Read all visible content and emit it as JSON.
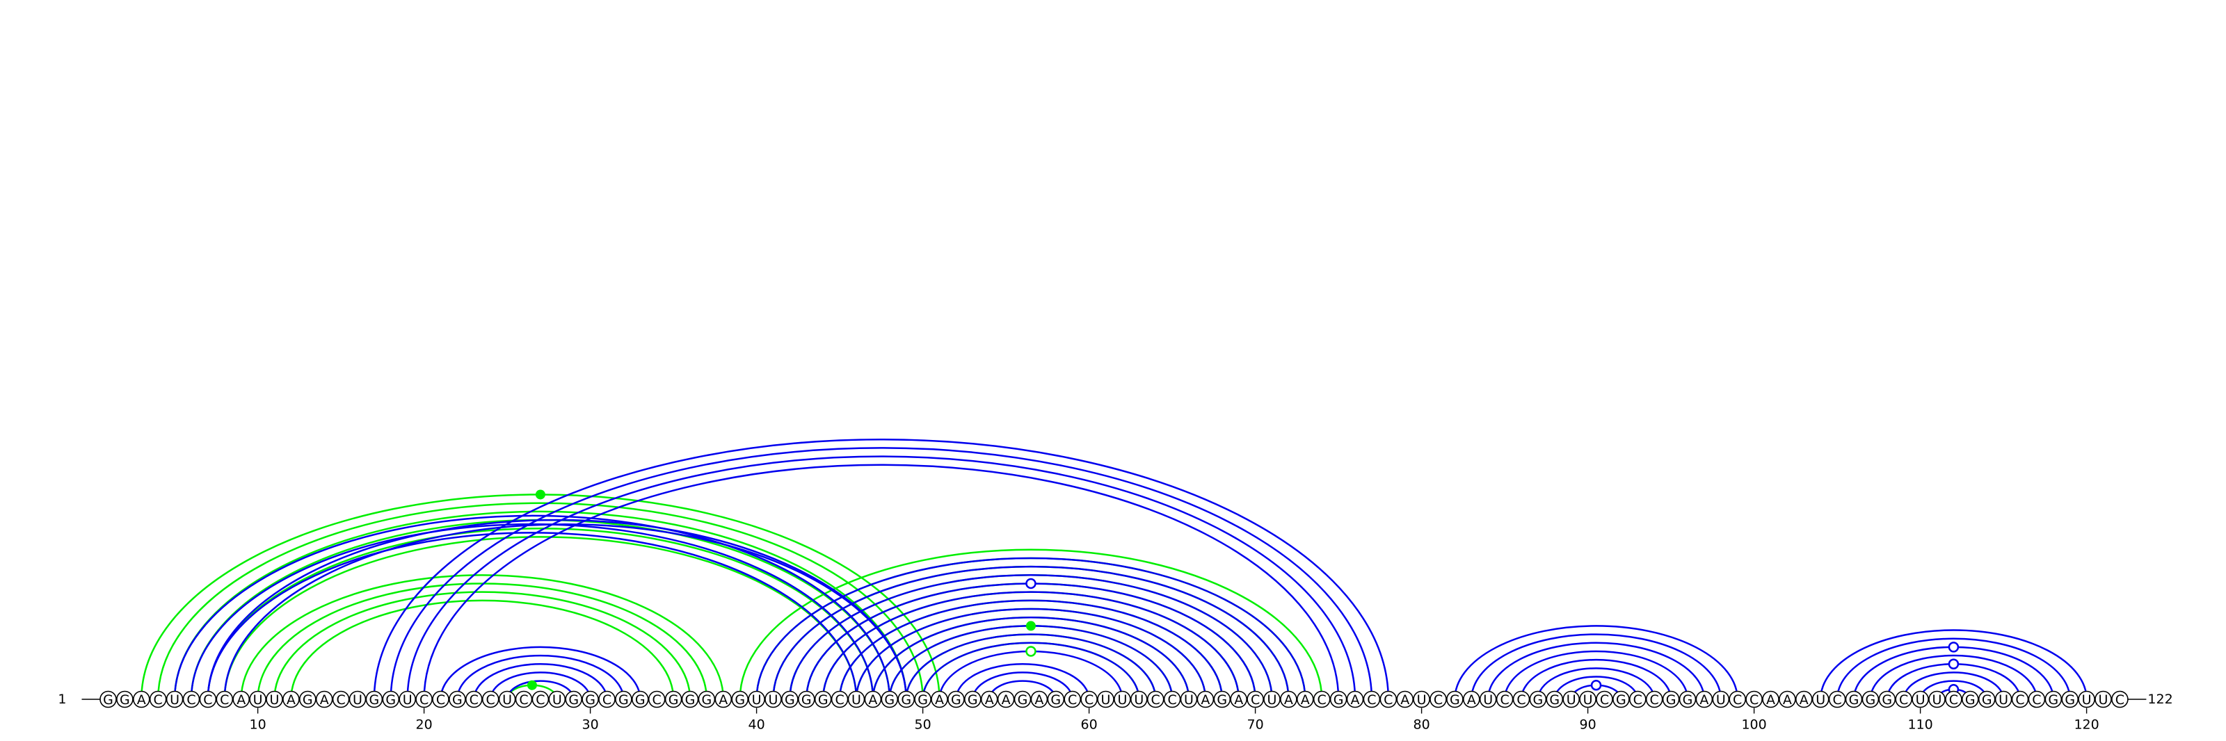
{
  "sequence": "GGACUCCCAUUAGACUGGUCCGCCUCCUGGCGGCGGGAGUUGGGCUAGGGAGGAAGAGCCUUUCCUAGACUAACGACCAUCGAUCCGGUUCGCCGGAUCCAAAUCGGGCUUCGGUCCGGUUC",
  "labels": {
    "start": "1",
    "end": "122",
    "ticks": [
      "10",
      "20",
      "30",
      "40",
      "50",
      "60",
      "70",
      "80",
      "90",
      "100",
      "110",
      "120"
    ]
  },
  "colors": {
    "blue": "#0000ee",
    "green": "#00ee00",
    "nucleotide_outline": "#000000"
  },
  "arcs": {
    "blue": [
      [
        17,
        78
      ],
      [
        18,
        77
      ],
      [
        19,
        76
      ],
      [
        20,
        75
      ],
      [
        21,
        33
      ],
      [
        22,
        32
      ],
      [
        23,
        31
      ],
      [
        24,
        30
      ],
      [
        25,
        29
      ],
      [
        5,
        48
      ],
      [
        6,
        47
      ],
      [
        7,
        46
      ],
      [
        7,
        49
      ],
      [
        8,
        49
      ],
      [
        40,
        73
      ],
      [
        41,
        72
      ],
      [
        42,
        71
      ],
      [
        43,
        70
      ],
      [
        44,
        69
      ],
      [
        45,
        68
      ],
      [
        46,
        67
      ],
      [
        47,
        66
      ],
      [
        48,
        65
      ],
      [
        49,
        64
      ],
      [
        50,
        63
      ],
      [
        51,
        62
      ],
      [
        52,
        60
      ],
      [
        53,
        59
      ],
      [
        54,
        58
      ],
      [
        82,
        99
      ],
      [
        83,
        98
      ],
      [
        84,
        97
      ],
      [
        85,
        96
      ],
      [
        86,
        95
      ],
      [
        87,
        94
      ],
      [
        88,
        93
      ],
      [
        89,
        92
      ],
      [
        104,
        120
      ],
      [
        105,
        119
      ],
      [
        106,
        118
      ],
      [
        107,
        117
      ],
      [
        108,
        116
      ],
      [
        109,
        115
      ],
      [
        110,
        114
      ],
      [
        111,
        113
      ]
    ],
    "green": [
      [
        25,
        28
      ],
      [
        3,
        51
      ],
      [
        4,
        50
      ],
      [
        5,
        49
      ],
      [
        6,
        48
      ],
      [
        7,
        47
      ],
      [
        8,
        46
      ],
      [
        9,
        38
      ],
      [
        10,
        37
      ],
      [
        11,
        36
      ],
      [
        12,
        35
      ],
      [
        39,
        74
      ],
      [
        40,
        73
      ],
      [
        41,
        72
      ],
      [
        42,
        71
      ],
      [
        43,
        70
      ],
      [
        44,
        69
      ],
      [
        45,
        68
      ],
      [
        46,
        67
      ],
      [
        47,
        66
      ],
      [
        48,
        65
      ],
      [
        49,
        64
      ],
      [
        50,
        63
      ]
    ]
  },
  "markers": {
    "green_filled": [
      [
        25,
        28
      ],
      [
        3,
        51
      ],
      [
        48,
        65
      ]
    ],
    "green_open": [
      [
        51,
        62
      ]
    ],
    "blue_open": [
      [
        43,
        70
      ],
      [
        89,
        92
      ],
      [
        106,
        118
      ],
      [
        108,
        116
      ],
      [
        111,
        113
      ]
    ]
  }
}
